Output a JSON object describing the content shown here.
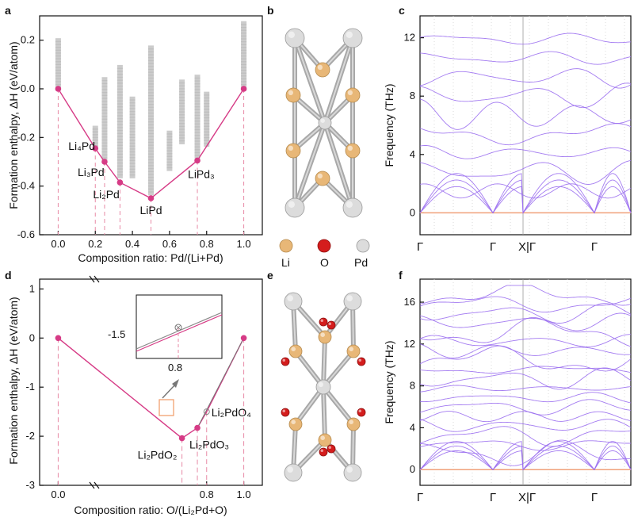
{
  "colors": {
    "hull": "#d63b86",
    "guide": "#e88aa6",
    "phonon": "#9a6ef0",
    "zero": "#f0a07a",
    "li": "#e8b777",
    "o": "#d41d1d",
    "pd": "#d8d8d8",
    "bond": "#a8a8a8"
  },
  "panels": {
    "a": "a",
    "b": "b",
    "c": "c",
    "d": "d",
    "e": "e",
    "f": "f"
  },
  "legend": {
    "li": "Li",
    "o": "O",
    "pd": "Pd"
  },
  "chart_data": [
    {
      "id": "a",
      "type": "scatter",
      "title": "",
      "xlabel": "Composition ratio: Pd/(Li+Pd)",
      "ylabel": "Formation enthalpy,  ΔH (eV/atom)",
      "xlim": [
        -0.1,
        1.1
      ],
      "ylim": [
        -0.6,
        0.3
      ],
      "xticks": [
        0.0,
        0.2,
        0.4,
        0.6,
        0.8,
        1.0
      ],
      "xtick_labels": [
        "0.0",
        "0.2",
        "0.4",
        "0.6",
        "0.8",
        "1.0"
      ],
      "yticks": [
        -0.6,
        -0.4,
        -0.2,
        0.0,
        0.2
      ],
      "ytick_labels": [
        "-0.6",
        "-0.4",
        "-0.2",
        "0.0",
        "0.2"
      ],
      "hull": {
        "name": "convex hull",
        "x": [
          0.0,
          0.2,
          0.25,
          0.333,
          0.5,
          0.75,
          1.0
        ],
        "y": [
          0.0,
          -0.245,
          -0.3,
          -0.385,
          -0.45,
          -0.295,
          0.0
        ]
      },
      "annotations": [
        {
          "text": "Li₄Pd",
          "x": 0.2,
          "y": -0.245
        },
        {
          "text": "Li₃Pd",
          "x": 0.25,
          "y": -0.3
        },
        {
          "text": "Li₂Pd",
          "x": 0.333,
          "y": -0.385
        },
        {
          "text": "LiPd",
          "x": 0.5,
          "y": -0.45
        },
        {
          "text": "LiPd₃",
          "x": 0.75,
          "y": -0.295
        }
      ],
      "candidates": [
        {
          "x": 0.0,
          "y_min": 0.0,
          "y_max": 0.2
        },
        {
          "x": 0.2,
          "y_min": -0.24,
          "y_max": -0.16
        },
        {
          "x": 0.25,
          "y_min": -0.29,
          "y_max": 0.04
        },
        {
          "x": 0.333,
          "y_min": -0.36,
          "y_max": 0.09
        },
        {
          "x": 0.4,
          "y_min": -0.36,
          "y_max": -0.04
        },
        {
          "x": 0.5,
          "y_min": -0.43,
          "y_max": 0.17
        },
        {
          "x": 0.6,
          "y_min": -0.33,
          "y_max": -0.18
        },
        {
          "x": 0.667,
          "y_min": -0.22,
          "y_max": 0.03
        },
        {
          "x": 0.75,
          "y_min": -0.28,
          "y_max": 0.05
        },
        {
          "x": 0.8,
          "y_min": -0.23,
          "y_max": -0.02
        },
        {
          "x": 1.0,
          "y_min": 0.0,
          "y_max": 0.27
        }
      ]
    },
    {
      "id": "d",
      "type": "line",
      "title": "",
      "xlabel": "Composition ratio: O/(Li₂Pd+O)",
      "ylabel": "Formation enthalpy,  ΔH (eV/atom)",
      "xlim": [
        -0.1,
        1.1
      ],
      "ylim": [
        -3.0,
        1.2
      ],
      "xticks": [
        0.0,
        0.8,
        1.0
      ],
      "xtick_labels": [
        "0.0",
        "0.8",
        "1.0"
      ],
      "yticks": [
        -3,
        -2,
        -1,
        0,
        1
      ],
      "ytick_labels": [
        "-3",
        "-2",
        "-1",
        "0",
        "1"
      ],
      "hull": {
        "name": "convex hull",
        "x": [
          0.0,
          0.667,
          0.75,
          0.8,
          1.0
        ],
        "y": [
          0.0,
          -2.04,
          -1.83,
          -1.5,
          0.0
        ]
      },
      "annotations": [
        {
          "text": "Li₂PdO₂",
          "x": 0.667,
          "y": -2.04
        },
        {
          "text": "Li₂PdO₃",
          "x": 0.75,
          "y": -1.83
        },
        {
          "text": "Li₂PdO₄",
          "x": 0.8,
          "y": -1.5
        }
      ],
      "inset": {
        "ytick_label": "-1.5",
        "xtick_label": "0.8",
        "y": -1.5,
        "x": 0.8
      }
    },
    {
      "id": "c",
      "type": "line",
      "title": "",
      "ylabel": "Frequency (THz)",
      "ylim": [
        -1.5,
        13.5
      ],
      "yticks": [
        0,
        4,
        8,
        12
      ],
      "ytick_labels": [
        "0",
        "4",
        "8",
        "12"
      ],
      "kpoints": [
        "Γ",
        "Γ",
        "X|Γ",
        "Γ"
      ],
      "n_branches": 12
    },
    {
      "id": "f",
      "type": "line",
      "title": "",
      "ylabel": "Frequency (THz)",
      "ylim": [
        -1.5,
        18.2
      ],
      "yticks": [
        0,
        4,
        8,
        12,
        16
      ],
      "ytick_labels": [
        "0",
        "4",
        "8",
        "12",
        "16"
      ],
      "kpoints": [
        "Γ",
        "Γ",
        "X|Γ",
        "Γ"
      ],
      "n_branches": 21
    }
  ]
}
